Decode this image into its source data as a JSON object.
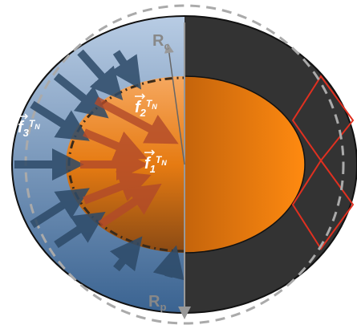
{
  "labels": {
    "rc": {
      "main": "R",
      "sub": "c"
    },
    "rp": {
      "main": "R",
      "sub": "p"
    },
    "f1": {
      "main": "f",
      "sub": "1",
      "exp": "T",
      "exp_sub": "N"
    },
    "f2": {
      "main": "f",
      "sub": "2",
      "exp": "T",
      "exp_sub": "N"
    },
    "f3": {
      "main": "f",
      "sub": "3",
      "exp": "T",
      "exp_sub": "N"
    }
  }
}
